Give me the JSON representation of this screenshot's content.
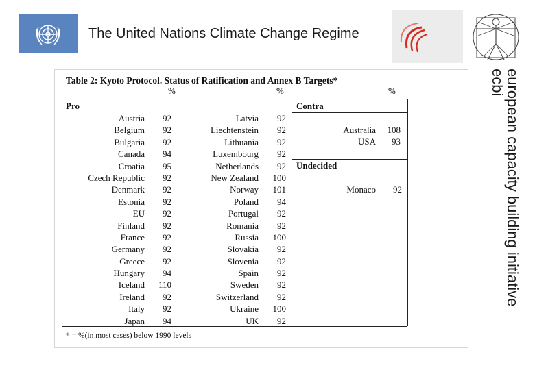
{
  "header": {
    "title": "The United Nations Climate Change Regime",
    "side_text_line1": "european capacity building initiative",
    "side_text_line2": "ecbi"
  },
  "table": {
    "title": "Table 2: Kyoto Protocol. Status of Ratification and Annex B Targets*",
    "pct_symbol": "%",
    "pro_label": "Pro",
    "contra_label": "Contra",
    "undecided_label": "Undecided",
    "pro_col1": [
      {
        "country": "Austria",
        "pct": "92"
      },
      {
        "country": "Belgium",
        "pct": "92"
      },
      {
        "country": "Bulgaria",
        "pct": "92"
      },
      {
        "country": "Canada",
        "pct": "94"
      },
      {
        "country": "Croatia",
        "pct": "95"
      },
      {
        "country": "Czech Republic",
        "pct": "92"
      },
      {
        "country": "Denmark",
        "pct": "92"
      },
      {
        "country": "Estonia",
        "pct": "92"
      },
      {
        "country": "EU",
        "pct": "92"
      },
      {
        "country": "Finland",
        "pct": "92"
      },
      {
        "country": "France",
        "pct": "92"
      },
      {
        "country": "Germany",
        "pct": "92"
      },
      {
        "country": "Greece",
        "pct": "92"
      },
      {
        "country": "Hungary",
        "pct": "94"
      },
      {
        "country": "Iceland",
        "pct": "110"
      },
      {
        "country": "Ireland",
        "pct": "92"
      },
      {
        "country": "Italy",
        "pct": "92"
      },
      {
        "country": "Japan",
        "pct": "94"
      }
    ],
    "pro_col2": [
      {
        "country": "Latvia",
        "pct": "92"
      },
      {
        "country": "Liechtenstein",
        "pct": "92"
      },
      {
        "country": "Lithuania",
        "pct": "92"
      },
      {
        "country": "Luxembourg",
        "pct": "92"
      },
      {
        "country": "Netherlands",
        "pct": "92"
      },
      {
        "country": "New Zealand",
        "pct": "100"
      },
      {
        "country": "Norway",
        "pct": "101"
      },
      {
        "country": "Poland",
        "pct": "94"
      },
      {
        "country": "Portugal",
        "pct": "92"
      },
      {
        "country": "Romania",
        "pct": "92"
      },
      {
        "country": "Russia",
        "pct": "100"
      },
      {
        "country": "Slovakia",
        "pct": "92"
      },
      {
        "country": "Slovenia",
        "pct": "92"
      },
      {
        "country": "Spain",
        "pct": "92"
      },
      {
        "country": "Sweden",
        "pct": "92"
      },
      {
        "country": "Switzerland",
        "pct": "92"
      },
      {
        "country": "Ukraine",
        "pct": "100"
      },
      {
        "country": "UK",
        "pct": "92"
      }
    ],
    "contra": [
      {
        "country": "Australia",
        "pct": "108"
      },
      {
        "country": "USA",
        "pct": "93"
      }
    ],
    "undecided": [
      {
        "country": "Monaco",
        "pct": "92"
      }
    ],
    "footnote": "* = %(in most cases) below 1990 levels"
  },
  "colors": {
    "un_blue": "#5a84bf",
    "unfccc_red": "#d62b1e"
  }
}
